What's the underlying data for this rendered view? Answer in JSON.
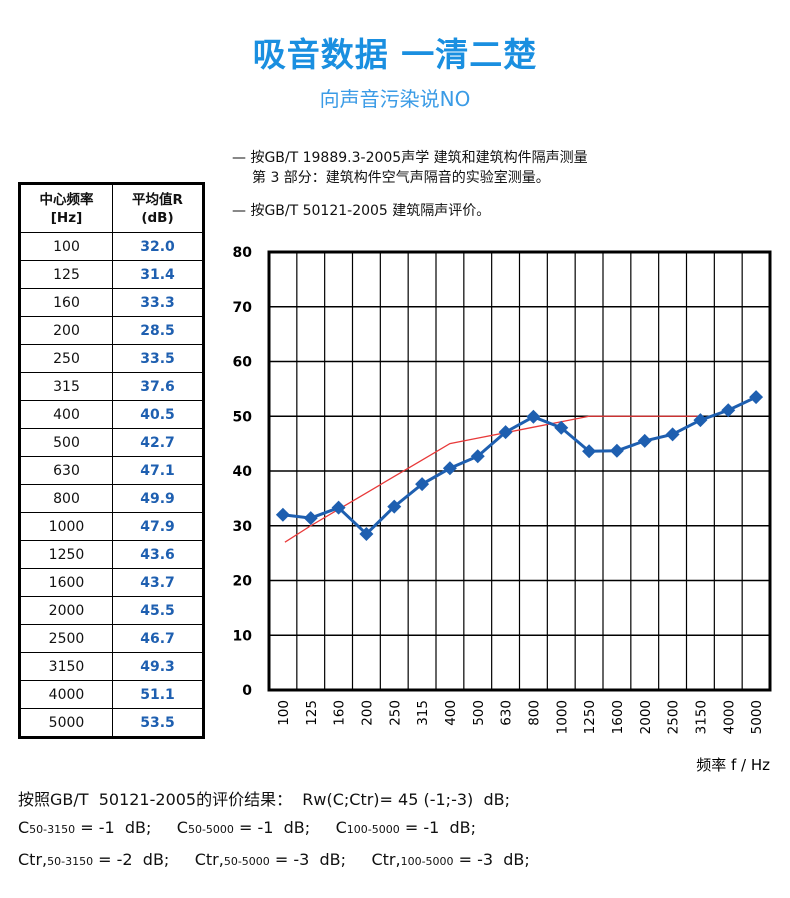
{
  "header": {
    "title": "吸音数据 一清二楚",
    "subtitle": "向声音污染说NO"
  },
  "standards": {
    "line1": "— 按GB/T  19889.3-2005声学  建筑和建筑构件隔声测量",
    "line2": "第 3 部分：建筑构件空气声隔音的实验室测量。",
    "line3": "— 按GB/T  50121-2005  建筑隔声评价。"
  },
  "table": {
    "col1_header_line1": "中心频率",
    "col1_header_line2": "[Hz]",
    "col2_header_line1": "平均值R",
    "col2_header_line2": "(dB)",
    "rows": [
      {
        "f": "100",
        "r": "32.0"
      },
      {
        "f": "125",
        "r": "31.4"
      },
      {
        "f": "160",
        "r": "33.3"
      },
      {
        "f": "200",
        "r": "28.5"
      },
      {
        "f": "250",
        "r": "33.5"
      },
      {
        "f": "315",
        "r": "37.6"
      },
      {
        "f": "400",
        "r": "40.5"
      },
      {
        "f": "500",
        "r": "42.7"
      },
      {
        "f": "630",
        "r": "47.1"
      },
      {
        "f": "800",
        "r": "49.9"
      },
      {
        "f": "1000",
        "r": "47.9"
      },
      {
        "f": "1250",
        "r": "43.6"
      },
      {
        "f": "1600",
        "r": "43.7"
      },
      {
        "f": "2000",
        "r": "45.5"
      },
      {
        "f": "2500",
        "r": "46.7"
      },
      {
        "f": "3150",
        "r": "49.3"
      },
      {
        "f": "4000",
        "r": "51.1"
      },
      {
        "f": "5000",
        "r": "53.5"
      }
    ]
  },
  "chart_data": {
    "type": "line",
    "categories": [
      "100",
      "125",
      "160",
      "200",
      "250",
      "315",
      "400",
      "500",
      "630",
      "800",
      "1000",
      "1250",
      "1600",
      "2000",
      "2500",
      "3150",
      "4000",
      "5000"
    ],
    "series": [
      {
        "values": [
          32.0,
          31.4,
          33.3,
          28.5,
          33.5,
          37.6,
          40.5,
          42.7,
          47.1,
          49.9,
          47.9,
          43.6,
          43.7,
          45.5,
          46.7,
          49.3,
          51.1,
          53.5
        ],
        "color": "#1e5fb0",
        "marker": "diamond"
      },
      {
        "values": [
          27,
          30,
          33,
          36,
          39,
          42,
          45,
          46,
          47,
          48,
          49,
          50,
          50,
          50,
          50,
          50,
          null,
          null
        ],
        "color": "#e83a3a",
        "marker": "none"
      }
    ],
    "xlabel": "频率 f / Hz",
    "ylabel": "",
    "ylim": [
      0,
      80
    ],
    "yticks": [
      0,
      10,
      20,
      30,
      40,
      50,
      60,
      70,
      80
    ],
    "grid": true
  },
  "results": {
    "line1": "按照GB/T  50121-2005的评价结果：  Rw(C;Ctr)= 45 (-1;-3)  dB;",
    "c1_pre": "C",
    "c1_sub": "50-3150",
    "c1_val": " = -1  dB;     ",
    "c2_pre": "C",
    "c2_sub": "50-5000",
    "c2_val": " = -1  dB;     ",
    "c3_pre": "C",
    "c3_sub": "100-5000",
    "c3_val": " = -1  dB;",
    "t1_pre": "Ctr,",
    "t1_sub": "50-3150",
    "t1_val": " = -2  dB;     ",
    "t2_pre": "Ctr,",
    "t2_sub": "50-5000",
    "t2_val": " = -3  dB;     ",
    "t3_pre": "Ctr,",
    "t3_sub": "100-5000",
    "t3_val": " = -3  dB;"
  }
}
